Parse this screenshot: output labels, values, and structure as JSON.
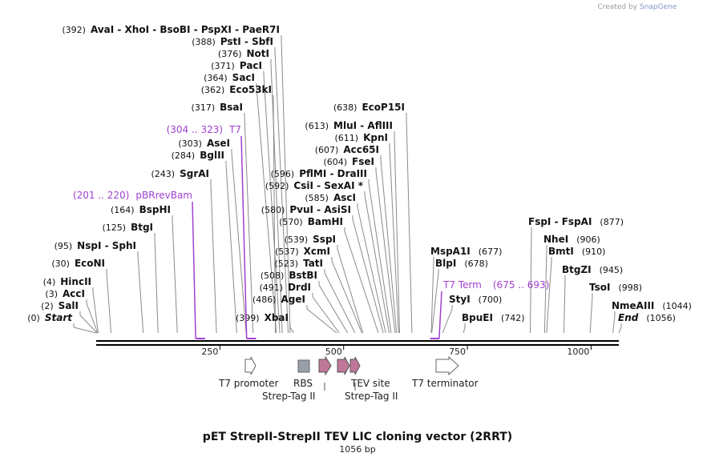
{
  "credit": {
    "prefix": "Created by",
    "brand": "SnapGene"
  },
  "title": "pET StrepII-StrepII TEV LIC cloning vector (2RRT)",
  "subtitle": "1056 bp",
  "sites": [
    {
      "pos": "(392)",
      "name": "AvaI  - XhoI  - BsoBI  - PspXI  - PaeR7I",
      "coord": 392,
      "side": "left"
    },
    {
      "pos": "(388)",
      "name": "PstI  - SbfI",
      "coord": 388,
      "side": "left"
    },
    {
      "pos": "(376)",
      "name": "NotI",
      "coord": 376,
      "side": "left"
    },
    {
      "pos": "(371)",
      "name": "PacI",
      "coord": 371,
      "side": "left"
    },
    {
      "pos": "(364)",
      "name": "SacI",
      "coord": 364,
      "side": "left"
    },
    {
      "pos": "(362)",
      "name": "Eco53kI",
      "coord": 362,
      "side": "left"
    },
    {
      "pos": "(317)",
      "name": "BsaI",
      "coord": 317,
      "side": "left"
    },
    {
      "pos": "(303)",
      "name": "AseI",
      "coord": 303,
      "side": "left"
    },
    {
      "pos": "(284)",
      "name": "BglII",
      "coord": 284,
      "side": "left"
    },
    {
      "pos": "(243)",
      "name": "SgrAI",
      "coord": 243,
      "side": "left"
    },
    {
      "pos": "(164)",
      "name": "BspHI",
      "coord": 164,
      "side": "left"
    },
    {
      "pos": "(125)",
      "name": "BtgI",
      "coord": 125,
      "side": "left"
    },
    {
      "pos": "(95)",
      "name": "NspI  - SphI",
      "coord": 95,
      "side": "left"
    },
    {
      "pos": "(30)",
      "name": "EcoNI",
      "coord": 30,
      "side": "left"
    },
    {
      "pos": "(4)",
      "name": "HincII",
      "coord": 4,
      "side": "left"
    },
    {
      "pos": "(3)",
      "name": "AccI",
      "coord": 3,
      "side": "left"
    },
    {
      "pos": "(2)",
      "name": "SalI",
      "coord": 2,
      "side": "left"
    },
    {
      "pos": "(0)",
      "name": "Start",
      "coord": 0,
      "side": "left",
      "italic": true
    },
    {
      "pos": "(638)",
      "name": "EcoP15I",
      "coord": 638,
      "side": "left"
    },
    {
      "pos": "(613)",
      "name": "MluI  - AflIII",
      "coord": 613,
      "side": "left"
    },
    {
      "pos": "(611)",
      "name": "KpnI",
      "coord": 611,
      "side": "left"
    },
    {
      "pos": "(607)",
      "name": "Acc65I",
      "coord": 607,
      "side": "left"
    },
    {
      "pos": "(604)",
      "name": "FseI",
      "coord": 604,
      "side": "left"
    },
    {
      "pos": "(596)",
      "name": "PflMI  - DraIII",
      "coord": 596,
      "side": "left"
    },
    {
      "pos": "(592)",
      "name": "CsiI  - SexAI *",
      "coord": 592,
      "side": "left"
    },
    {
      "pos": "(585)",
      "name": "AscI",
      "coord": 585,
      "side": "left"
    },
    {
      "pos": "(580)",
      "name": "PvuI  - AsiSI",
      "coord": 580,
      "side": "left"
    },
    {
      "pos": "(570)",
      "name": "BamHI",
      "coord": 570,
      "side": "left"
    },
    {
      "pos": "(539)",
      "name": "SspI",
      "coord": 539,
      "side": "left"
    },
    {
      "pos": "(537)",
      "name": "XcmI",
      "coord": 537,
      "side": "left"
    },
    {
      "pos": "(523)",
      "name": "TatI",
      "coord": 523,
      "side": "left"
    },
    {
      "pos": "(508)",
      "name": "BstBI",
      "coord": 508,
      "side": "left"
    },
    {
      "pos": "(491)",
      "name": "DrdI",
      "coord": 491,
      "side": "left"
    },
    {
      "pos": "(486)",
      "name": "AgeI",
      "coord": 486,
      "side": "left"
    },
    {
      "pos": "(399)",
      "name": "XbaI",
      "coord": 399,
      "side": "left"
    },
    {
      "pos": "(677)",
      "name": "MspA1I",
      "coord": 677,
      "side": "right"
    },
    {
      "pos": "(678)",
      "name": "BlpI",
      "coord": 678,
      "side": "right"
    },
    {
      "pos": "(700)",
      "name": "StyI",
      "coord": 700,
      "side": "right"
    },
    {
      "pos": "(742)",
      "name": "BpuEI",
      "coord": 742,
      "side": "right"
    },
    {
      "pos": "(877)",
      "name": "FspI  - FspAI",
      "coord": 877,
      "side": "right"
    },
    {
      "pos": "(906)",
      "name": "NheI",
      "coord": 906,
      "side": "right"
    },
    {
      "pos": "(910)",
      "name": "BmtI",
      "coord": 910,
      "side": "right"
    },
    {
      "pos": "(945)",
      "name": "BtgZI",
      "coord": 945,
      "side": "right"
    },
    {
      "pos": "(998)",
      "name": "TsoI",
      "coord": 998,
      "side": "right"
    },
    {
      "pos": "(1044)",
      "name": "NmeAIII",
      "coord": 1044,
      "side": "right"
    },
    {
      "pos": "(1056)",
      "name": "End",
      "coord": 1056,
      "side": "right",
      "italic": true
    }
  ],
  "primers": [
    {
      "pos": "(201 .. 220)",
      "name": "pBRrevBam",
      "start": 201,
      "end": 220,
      "side": "left"
    },
    {
      "pos": "(304 .. 323)",
      "name": "T7",
      "start": 304,
      "end": 323,
      "side": "left"
    },
    {
      "pos": "(675 .. 693)",
      "name": "T7 Term",
      "start": 675,
      "end": 693,
      "side": "right"
    }
  ],
  "ruler": {
    "length": 1056,
    "ticks": [
      "250",
      "500",
      "750",
      "1000"
    ]
  },
  "features": [
    {
      "name": "T7 promoter",
      "type": "promoter"
    },
    {
      "name": "RBS",
      "type": "rbs"
    },
    {
      "name": "Strep-Tag II",
      "type": "cds"
    },
    {
      "name": "TEV site",
      "type": "cds"
    },
    {
      "name": "Strep-Tag II",
      "type": "cds"
    },
    {
      "name": "T7 terminator",
      "type": "terminator"
    }
  ],
  "colors": {
    "line": "#000000",
    "leader": "#8a8a8a",
    "primer": "#a040d0",
    "rbs": "#9aa0a8",
    "cds": "#c07898",
    "promoter": "#ffffff"
  }
}
